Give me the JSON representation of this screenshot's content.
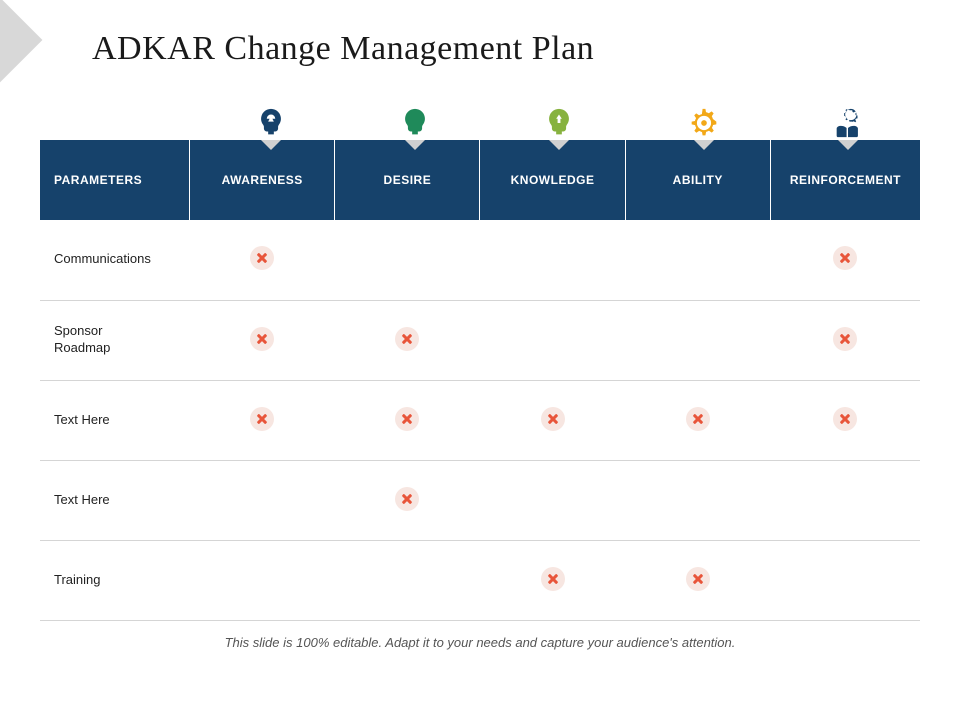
{
  "title": "ADKAR Change Management Plan",
  "footer": "This slide is 100% editable. Adapt it to your needs and capture your audience's attention.",
  "table": {
    "header_bg": "#16426b",
    "header_text_color": "#ffffff",
    "row_border_color": "#d5d5d5",
    "xmark_bg": "#f7e6e1",
    "xmark_color": "#e8553a",
    "columns": [
      "Parameters",
      "Awareness",
      "Desire",
      "Knowledge",
      "Ability",
      "Reinforcement"
    ],
    "icon_colors": [
      "#16426b",
      "#1f8a5a",
      "#87b23f",
      "#f2a818",
      "#16426b"
    ],
    "rows": [
      {
        "label": "Communications",
        "marks": [
          true,
          false,
          false,
          false,
          true
        ]
      },
      {
        "label": "Sponsor Roadmap",
        "marks": [
          true,
          true,
          false,
          false,
          true
        ]
      },
      {
        "label": "Text Here",
        "marks": [
          true,
          true,
          true,
          true,
          true
        ]
      },
      {
        "label": "Text Here",
        "marks": [
          false,
          true,
          false,
          false,
          false
        ]
      },
      {
        "label": "Training",
        "marks": [
          false,
          false,
          true,
          true,
          false
        ]
      }
    ]
  }
}
